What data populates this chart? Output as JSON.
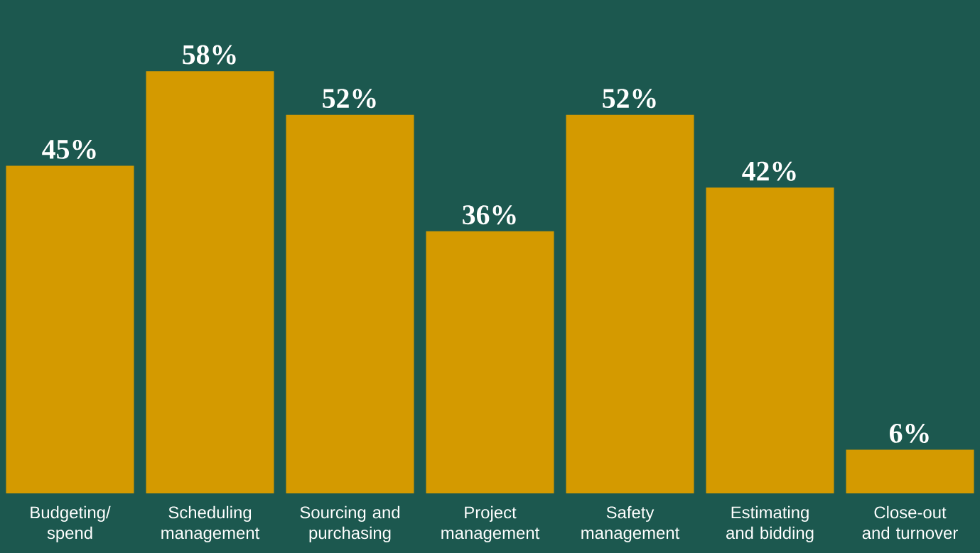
{
  "chart_data": {
    "type": "bar",
    "categories": [
      "Budgeting/ spend",
      "Scheduling management",
      "Sourcing and purchasing",
      "Project management",
      "Safety management",
      "Estimating and bidding",
      "Close-out and turnover"
    ],
    "values": [
      45,
      58,
      52,
      36,
      52,
      42,
      6
    ],
    "value_labels": [
      "45%",
      "58%",
      "52%",
      "36%",
      "52%",
      "42%",
      "6%"
    ],
    "color": "#d49a00"
  }
}
